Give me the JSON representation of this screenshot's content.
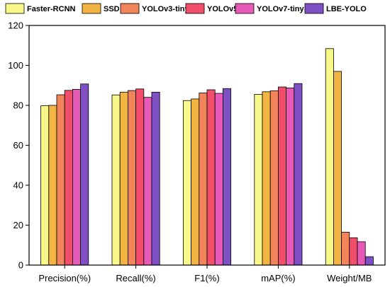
{
  "chart_data": {
    "type": "bar",
    "categories": [
      "Precision(%)",
      "Recall(%)",
      "F1(%)",
      "mAP(%)",
      "Weight/MB"
    ],
    "series": [
      {
        "name": "Faster-RCNN",
        "color": "#f7f78a",
        "values": [
          79.8,
          85.2,
          82.4,
          85.5,
          108.4
        ]
      },
      {
        "name": "SSD",
        "color": "#f2b544",
        "values": [
          80.0,
          86.6,
          83.2,
          86.8,
          97.0
        ]
      },
      {
        "name": "YOLOv3-tiny",
        "color": "#f2845c",
        "values": [
          85.3,
          87.4,
          86.2,
          87.3,
          16.5
        ]
      },
      {
        "name": "YOLOv5",
        "color": "#f04e6a",
        "values": [
          87.5,
          88.2,
          87.8,
          89.2,
          13.7
        ]
      },
      {
        "name": "YOLOv7-tiny",
        "color": "#e85ab8",
        "values": [
          88.0,
          84.0,
          86.0,
          88.7,
          11.7
        ]
      },
      {
        "name": "LBE-YOLO",
        "color": "#7f4fc4",
        "values": [
          90.7,
          86.6,
          88.4,
          90.9,
          4.2
        ]
      }
    ],
    "ylim": [
      0,
      120
    ],
    "yticks": [
      0,
      20,
      40,
      60,
      80,
      100,
      120
    ],
    "xlabel": "",
    "ylabel": "",
    "legend": "top"
  }
}
